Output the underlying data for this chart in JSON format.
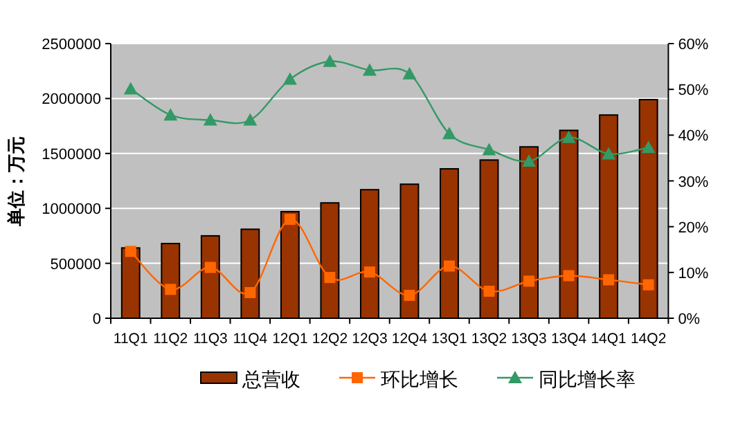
{
  "chart_data": {
    "type": "bar",
    "ylabel": "单位：万元",
    "categories": [
      "11Q1",
      "11Q2",
      "11Q3",
      "11Q4",
      "12Q1",
      "12Q2",
      "12Q3",
      "12Q4",
      "13Q1",
      "13Q2",
      "13Q3",
      "13Q4",
      "14Q1",
      "14Q2"
    ],
    "series": [
      {
        "name": "总营收",
        "color": "#993300",
        "values": [
          640000,
          680000,
          750000,
          810000,
          970000,
          1050000,
          1170000,
          1220000,
          1360000,
          1440000,
          1560000,
          1710000,
          1850000,
          1990000
        ]
      },
      {
        "name": "环比增长",
        "type": "line",
        "axis": "y2",
        "marker": "square",
        "color": "#ff6600",
        "values": [
          14.6,
          6.3,
          11.1,
          5.6,
          21.6,
          8.9,
          10.1,
          5.0,
          11.4,
          5.9,
          8.1,
          9.3,
          8.4,
          7.3
        ]
      },
      {
        "name": "同比增长率",
        "type": "line",
        "axis": "y2",
        "marker": "triangle",
        "color": "#339966",
        "values": [
          50.1,
          44.4,
          43.3,
          43.3,
          52.2,
          56.1,
          54.2,
          53.4,
          40.3,
          36.8,
          34.3,
          39.5,
          35.9,
          37.3
        ]
      }
    ],
    "ylim": [
      0,
      2500000
    ],
    "yticks": [
      0,
      500000,
      1000000,
      1500000,
      2000000,
      2500000
    ],
    "y2lim": [
      0,
      60
    ],
    "y2ticks": [
      {
        "value": 0,
        "label": "0%"
      },
      {
        "value": 10,
        "label": "10%"
      },
      {
        "value": 20,
        "label": "20%"
      },
      {
        "value": 30,
        "label": "30%"
      },
      {
        "value": 40,
        "label": "40%"
      },
      {
        "value": 50,
        "label": "50%"
      },
      {
        "value": 60,
        "label": "60%"
      }
    ],
    "grid": "y",
    "legend": "bottom",
    "line_style": "solid"
  }
}
